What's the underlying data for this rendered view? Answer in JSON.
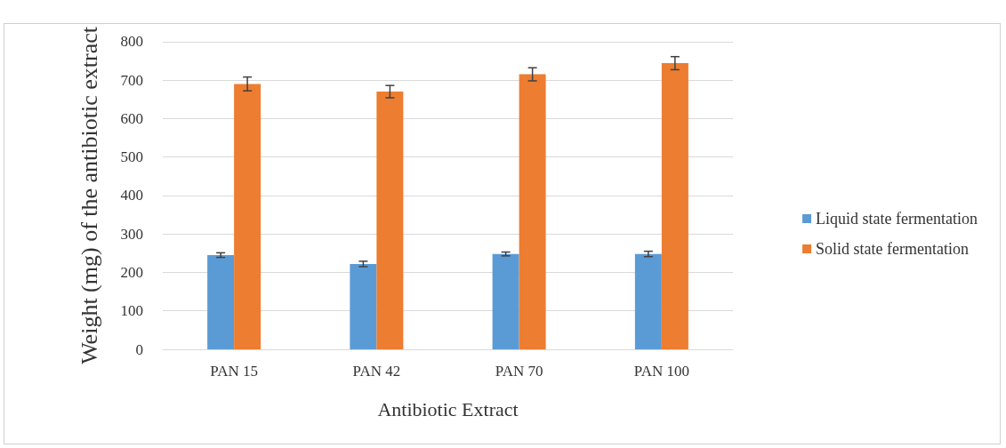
{
  "chart_data": {
    "type": "bar",
    "xlabel": "Antibiotic Extract",
    "ylabel": "Weight (mg) of the antibiotic extract",
    "categories": [
      "PAN 15",
      "PAN 42",
      "PAN 70",
      "PAN 100"
    ],
    "series": [
      {
        "name": "Liquid state fermentation",
        "color": "#5b9bd5",
        "values": [
          245,
          222,
          248,
          248
        ],
        "errors": [
          6,
          7,
          5,
          7
        ]
      },
      {
        "name": "Solid state fermentation",
        "color": "#ed7d31",
        "values": [
          690,
          670,
          715,
          744
        ],
        "errors": [
          18,
          16,
          17,
          17
        ]
      }
    ],
    "ylim": [
      0,
      800
    ],
    "yticks": [
      0,
      100,
      200,
      300,
      400,
      500,
      600,
      700,
      800
    ],
    "grid": "y",
    "legend": "right"
  }
}
